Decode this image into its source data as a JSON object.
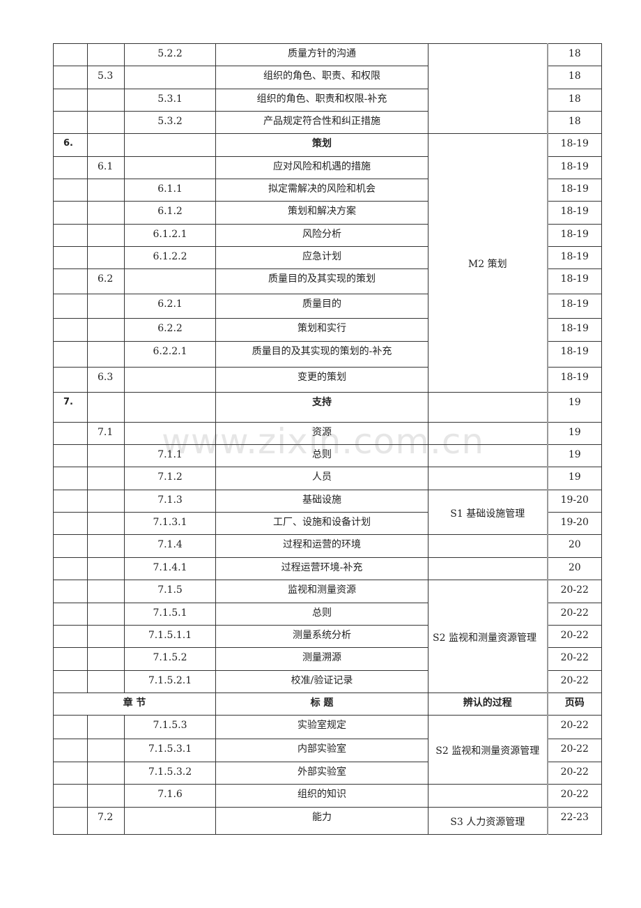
{
  "watermark": "www.zixin.com.cn",
  "header": {
    "chapter": "章 节",
    "title": "标 题",
    "process": "辨认的过程",
    "page": "页码"
  },
  "rows": [
    {
      "c1": "",
      "c2": "",
      "c3": "5.2.2",
      "title": "质量方针的沟通",
      "page": "18",
      "process": {
        "text": "",
        "span": 4
      }
    },
    {
      "c1": "",
      "c2": "5.3",
      "c3": "",
      "title": "组织的角色、职责、和权限",
      "page": "18"
    },
    {
      "c1": "",
      "c2": "",
      "c3": "5.3.1",
      "title": "组织的角色、职责和权限-补充",
      "page": "18"
    },
    {
      "c1": "",
      "c2": "",
      "c3": "5.3.2",
      "title": "产品规定符合性和纠正措施",
      "page": "18"
    },
    {
      "c1": "6.",
      "c2": "",
      "c3": "",
      "title": "策划",
      "page": "18-19",
      "bold": true,
      "process": {
        "text": "M2 策划",
        "span": 11
      }
    },
    {
      "c1": "",
      "c2": "6.1",
      "c3": "",
      "title": "应对风险和机遇的措施",
      "page": "18-19"
    },
    {
      "c1": "",
      "c2": "",
      "c3": "6.1.1",
      "title": "拟定需解决的风险和机会",
      "page": "18-19"
    },
    {
      "c1": "",
      "c2": "",
      "c3": "6.1.2",
      "title": "策划和解决方案",
      "page": "18-19"
    },
    {
      "c1": "",
      "c2": "",
      "c3": "6.1.2.1",
      "title": "风险分析",
      "page": "18-19"
    },
    {
      "c1": "",
      "c2": "",
      "c3": "6.1.2.2",
      "title": "应急计划",
      "page": "18-19"
    },
    {
      "c1": "",
      "c2": "6.2",
      "c3": "",
      "title": "质量目的及其实现的策划",
      "page": "18-19"
    },
    {
      "c1": "",
      "c2": "",
      "c3": "6.2.1",
      "title": "质量目的",
      "page": "18-19"
    },
    {
      "c1": "",
      "c2": "",
      "c3": "6.2.2",
      "title": "策划和实行",
      "page": "18-19"
    },
    {
      "c1": "",
      "c2": "",
      "c3": "6.2.2.1",
      "title": "质量目的及其实现的策划的-补充",
      "page": "18-19"
    },
    {
      "c1": "",
      "c2": "6.3",
      "c3": "",
      "title": "变更的策划",
      "page": "18-19"
    },
    {
      "c1": "7.",
      "c2": "",
      "c3": "",
      "title": "支持",
      "page": "19",
      "bold": true,
      "process": {
        "text": "",
        "span": 1
      }
    },
    {
      "c1": "",
      "c2": "7.1",
      "c3": "",
      "title": "资源",
      "page": "19",
      "process": {
        "text": "",
        "span": 1
      }
    },
    {
      "c1": "",
      "c2": "",
      "c3": "7.1.1",
      "title": "总则",
      "page": "19",
      "process": {
        "text": "",
        "span": 1
      }
    },
    {
      "c1": "",
      "c2": "",
      "c3": "7.1.2",
      "title": "人员",
      "page": "19",
      "process": {
        "text": "",
        "span": 1
      }
    },
    {
      "c1": "",
      "c2": "",
      "c3": "7.1.3",
      "title": "基础设施",
      "page": "19-20",
      "process": {
        "text": "S1 基础设施管理",
        "span": 2
      }
    },
    {
      "c1": "",
      "c2": "",
      "c3": "7.1.3.1",
      "title": "工厂、设施和设备计划",
      "page": "19-20"
    },
    {
      "c1": "",
      "c2": "",
      "c3": "7.1.4",
      "title": "过程和运营的环境",
      "page": "20",
      "process": {
        "text": "",
        "span": 1
      }
    },
    {
      "c1": "",
      "c2": "",
      "c3": "7.1.4.1",
      "title": "过程运营环境-补充",
      "page": "20",
      "process": {
        "text": "",
        "span": 1
      }
    },
    {
      "c1": "",
      "c2": "",
      "c3": "7.1.5",
      "title": "监视和测量资源",
      "page": "20-22",
      "process": {
        "text": "S2 监视和测量资源管理",
        "span": 5,
        "align": "left"
      }
    },
    {
      "c1": "",
      "c2": "",
      "c3": "7.1.5.1",
      "title": "总则",
      "page": "20-22"
    },
    {
      "c1": "",
      "c2": "",
      "c3": "7.1.5.1.1",
      "title": "测量系统分析",
      "page": "20-22"
    },
    {
      "c1": "",
      "c2": "",
      "c3": "7.1.5.2",
      "title": "测量溯源",
      "page": "20-22"
    },
    {
      "c1": "",
      "c2": "",
      "c3": "7.1.5.2.1",
      "title": "校准/验证记录",
      "page": "20-22"
    },
    {
      "header": true
    },
    {
      "c1": "",
      "c2": "",
      "c3": "7.1.5.3",
      "title": "实验室规定",
      "page": "20-22",
      "process": {
        "text": "S2 监视和测量资源管理",
        "span": 3
      }
    },
    {
      "c1": "",
      "c2": "",
      "c3": "7.1.5.3.1",
      "title": "内部实验室",
      "page": "20-22"
    },
    {
      "c1": "",
      "c2": "",
      "c3": "7.1.5.3.2",
      "title": "外部实验室",
      "page": "20-22"
    },
    {
      "c1": "",
      "c2": "",
      "c3": "7.1.6",
      "title": "组织的知识",
      "page": "20-22",
      "process": {
        "text": "",
        "span": 1
      }
    },
    {
      "c1": "",
      "c2": "7.2",
      "c3": "",
      "title": "能力",
      "page": "22-23",
      "process": {
        "text": "S3 人力资源管理",
        "span": 1
      }
    }
  ]
}
